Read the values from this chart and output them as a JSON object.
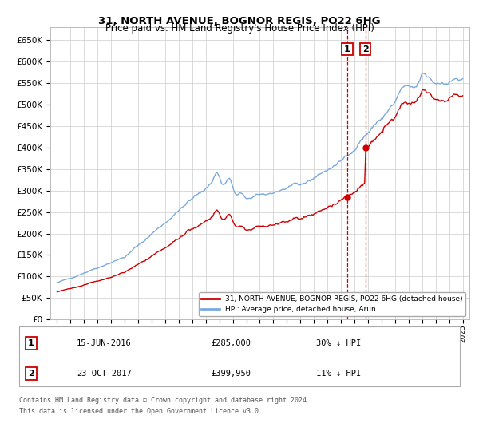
{
  "title": "31, NORTH AVENUE, BOGNOR REGIS, PO22 6HG",
  "subtitle": "Price paid vs. HM Land Registry's House Price Index (HPI)",
  "legend_line1": "31, NORTH AVENUE, BOGNOR REGIS, PO22 6HG (detached house)",
  "legend_line2": "HPI: Average price, detached house, Arun",
  "sale1_label": "1",
  "sale1_date": "15-JUN-2016",
  "sale1_price": "£285,000",
  "sale1_hpi": "30% ↓ HPI",
  "sale1_year": 2016.46,
  "sale1_value": 285000,
  "sale2_label": "2",
  "sale2_date": "23-OCT-2017",
  "sale2_price": "£399,950",
  "sale2_hpi": "11% ↓ HPI",
  "sale2_year": 2017.81,
  "sale2_value": 399950,
  "hpi_color": "#7aaadd",
  "price_color": "#cc0000",
  "marker_color": "#cc0000",
  "vline_color": "#cc0000",
  "box_color": "#cc0000",
  "ylim": [
    0,
    680000
  ],
  "yticks": [
    0,
    50000,
    100000,
    150000,
    200000,
    250000,
    300000,
    350000,
    400000,
    450000,
    500000,
    550000,
    600000,
    650000
  ],
  "sale1_table_date": "15-JUN-2016",
  "sale2_table_date": "23-OCT-2017",
  "footnote_line1": "Contains HM Land Registry data © Crown copyright and database right 2024.",
  "footnote_line2": "This data is licensed under the Open Government Licence v3.0.",
  "background_color": "#ffffff",
  "grid_color": "#cccccc"
}
